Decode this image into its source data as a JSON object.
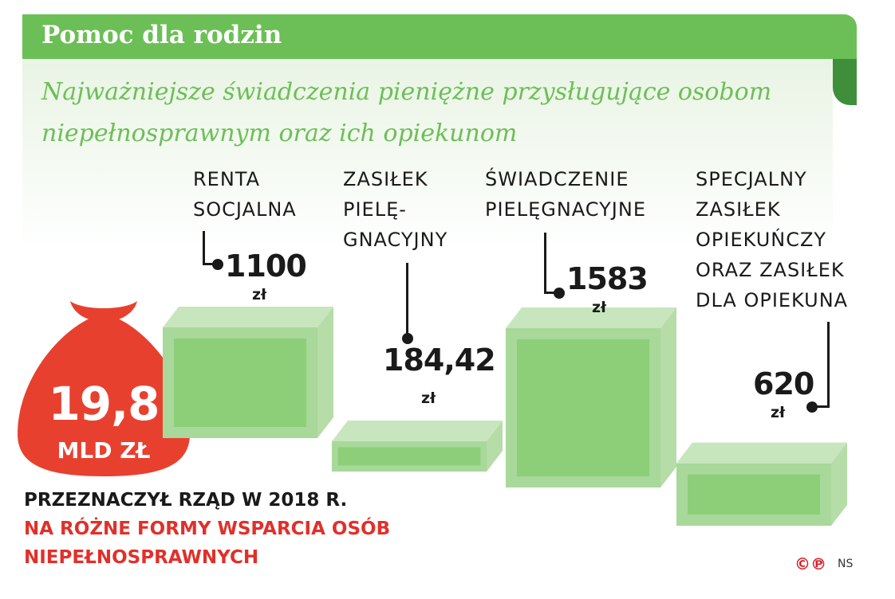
{
  "title": "Pomoc dla rodzin",
  "subtitle": "Najważniejsze świadczenia pieniężne przysługujące osobom niepełnosprawnym oraz ich opiekunom",
  "chart_data": {
    "type": "bar",
    "categories": [
      "Renta\nsocjalna",
      "Zasiłek\npielę-\ngnacyjny",
      "Świadczenie\npielęgnacyjne",
      "Specjalny\nzasiłek\nopiekuńczy\noraz zasiłek\ndla opiekuna"
    ],
    "values": [
      1100,
      184.42,
      1583,
      620
    ],
    "value_labels": [
      "1100",
      "184,42",
      "1583",
      "620"
    ],
    "unit": "zł",
    "bar_color": "#a8d89a"
  },
  "total": {
    "value": "19,8",
    "unit": "mld zł",
    "color": "#e8402f"
  },
  "note": {
    "line1": "PRZEZNACZYŁ RZĄD W 2018 R.",
    "line2": "NA RÓŻNE FORMY WSPARCIA OSÓB",
    "line3": "NIEPEŁNOSPRAWNYCH"
  },
  "copyright": "©℗",
  "source": "NS"
}
